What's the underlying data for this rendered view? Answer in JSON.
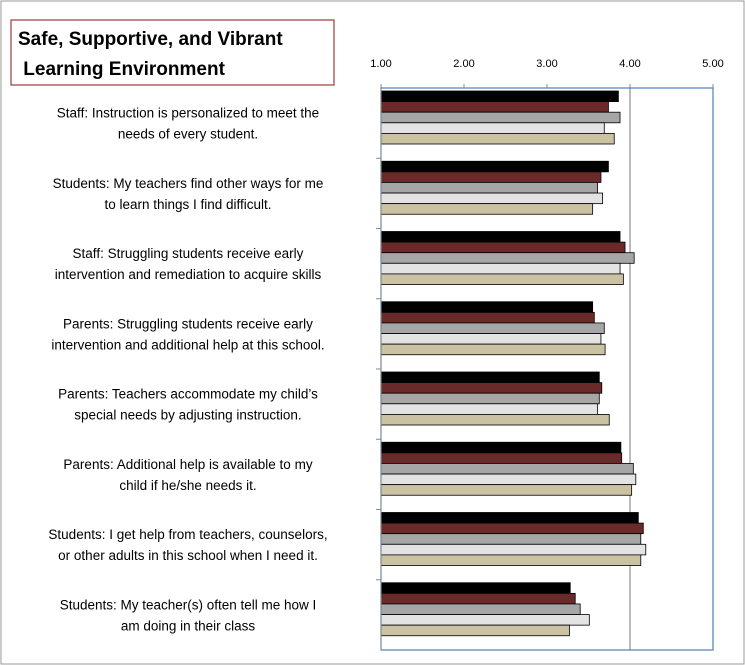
{
  "chart_data": {
    "type": "hbar",
    "title": [
      "Safe, Supportive, and Vibrant",
      " Learning Environment"
    ],
    "categories": [
      [
        "Staff: Instruction is personalized to meet the",
        "needs of every student."
      ],
      [
        "Students: My teachers find other ways for me",
        "to learn things I find difficult."
      ],
      [
        "Staff: Struggling students receive early",
        "intervention and remediation to acquire skills"
      ],
      [
        "Parents: Struggling students receive early",
        "intervention and additional help at this school."
      ],
      [
        "Parents: Teachers accommodate my child’s",
        "special needs by adjusting instruction."
      ],
      [
        "Parents: Additional help is available to my",
        "child if he/she needs it."
      ],
      [
        "Students: I get help from teachers, counselors,",
        "or other adults in this school when I need it."
      ],
      [
        "Students:  My teacher(s) often tell me how I",
        "am doing in their class"
      ]
    ],
    "series": [
      {
        "color": "#000000",
        "values": [
          3.86,
          3.74,
          3.88,
          3.55,
          3.63,
          3.89,
          4.1,
          3.28
        ]
      },
      {
        "color": "#6b2a2a",
        "values": [
          3.74,
          3.65,
          3.94,
          3.57,
          3.66,
          3.9,
          4.16,
          3.34
        ]
      },
      {
        "color": "#a6a6a6",
        "values": [
          3.88,
          3.61,
          4.05,
          3.69,
          3.63,
          4.04,
          4.13,
          3.4
        ]
      },
      {
        "color": "#e3e3e3",
        "values": [
          3.69,
          3.67,
          3.88,
          3.65,
          3.61,
          4.07,
          4.19,
          3.51
        ]
      },
      {
        "color": "#cbc2a3",
        "values": [
          3.81,
          3.55,
          3.92,
          3.7,
          3.75,
          4.02,
          4.13,
          3.27
        ]
      }
    ],
    "xlim": [
      1,
      5
    ],
    "xticks": [
      {
        "value": 1,
        "label": "1.00"
      },
      {
        "value": 2,
        "label": "2.00"
      },
      {
        "value": 3,
        "label": "3.00"
      },
      {
        "value": 4,
        "label": "4.00"
      },
      {
        "value": 5,
        "label": "5.00"
      }
    ],
    "grid_x": [
      4
    ]
  }
}
